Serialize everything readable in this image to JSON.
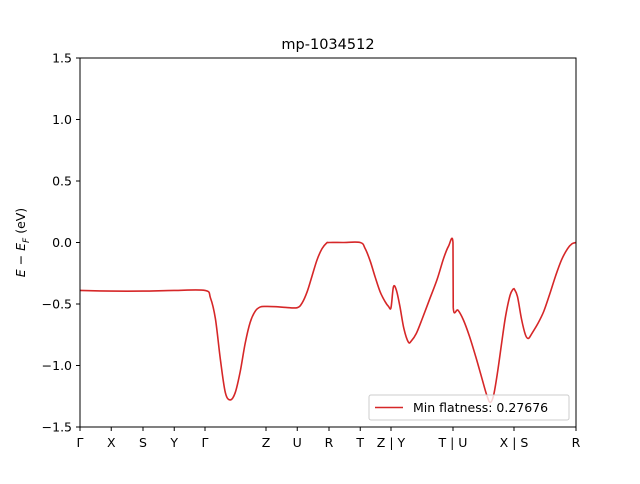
{
  "chart_data": {
    "type": "line",
    "title": "mp-1034512",
    "ylabel": "E − E_F (eV)",
    "ylim": [
      -1.5,
      1.5
    ],
    "yticks": [
      {
        "value": 1.5,
        "label": "1.5"
      },
      {
        "value": 1.0,
        "label": "1.0"
      },
      {
        "value": 0.5,
        "label": "0.5"
      },
      {
        "value": 0.0,
        "label": "0.0"
      },
      {
        "value": -0.5,
        "label": "−0.5"
      },
      {
        "value": -1.0,
        "label": "−1.0"
      },
      {
        "value": -1.5,
        "label": "−1.5"
      }
    ],
    "xlim": [
      0,
      100
    ],
    "xticks": [
      {
        "value": 0.0,
        "label": "Γ"
      },
      {
        "value": 6.3,
        "label": "X"
      },
      {
        "value": 12.7,
        "label": "S"
      },
      {
        "value": 19.0,
        "label": "Y"
      },
      {
        "value": 25.2,
        "label": "Γ"
      },
      {
        "value": 37.5,
        "label": "Z"
      },
      {
        "value": 43.8,
        "label": "U"
      },
      {
        "value": 50.2,
        "label": "R"
      },
      {
        "value": 56.5,
        "label": "T"
      },
      {
        "value": 62.7,
        "label": "Z | Y"
      },
      {
        "value": 75.2,
        "label": "T | U"
      },
      {
        "value": 87.5,
        "label": "X | S"
      },
      {
        "value": 100.0,
        "label": "R"
      }
    ],
    "grid": false,
    "legend": {
      "position": "lower right",
      "label": "Min flatness: 0.27676"
    },
    "series": [
      {
        "name": "Min flatness: 0.27676",
        "color": "#d62728",
        "points": [
          [
            0.0,
            -0.39
          ],
          [
            6.3,
            -0.395
          ],
          [
            12.7,
            -0.395
          ],
          [
            19.0,
            -0.39
          ],
          [
            25.2,
            -0.39
          ],
          [
            26.3,
            -0.45
          ],
          [
            27.3,
            -0.62
          ],
          [
            28.3,
            -0.95
          ],
          [
            29.3,
            -1.22
          ],
          [
            30.3,
            -1.28
          ],
          [
            31.3,
            -1.22
          ],
          [
            32.3,
            -1.05
          ],
          [
            33.3,
            -0.82
          ],
          [
            34.3,
            -0.65
          ],
          [
            35.3,
            -0.56
          ],
          [
            36.3,
            -0.525
          ],
          [
            37.5,
            -0.52
          ],
          [
            39.5,
            -0.522
          ],
          [
            41.5,
            -0.528
          ],
          [
            43.8,
            -0.53
          ],
          [
            44.8,
            -0.49
          ],
          [
            45.8,
            -0.4
          ],
          [
            46.8,
            -0.27
          ],
          [
            47.8,
            -0.14
          ],
          [
            48.8,
            -0.05
          ],
          [
            49.7,
            -0.005
          ],
          [
            50.2,
            0.0
          ],
          [
            53.0,
            0.0
          ],
          [
            56.5,
            0.0
          ],
          [
            57.5,
            -0.05
          ],
          [
            58.5,
            -0.15
          ],
          [
            59.5,
            -0.28
          ],
          [
            60.5,
            -0.4
          ],
          [
            61.5,
            -0.48
          ],
          [
            62.2,
            -0.52
          ],
          [
            62.7,
            -0.53
          ],
          [
            63.2,
            -0.36
          ],
          [
            63.8,
            -0.39
          ],
          [
            64.5,
            -0.52
          ],
          [
            65.3,
            -0.7
          ],
          [
            66.2,
            -0.81
          ],
          [
            66.8,
            -0.8
          ],
          [
            67.8,
            -0.74
          ],
          [
            69.0,
            -0.62
          ],
          [
            70.5,
            -0.46
          ],
          [
            72.0,
            -0.3
          ],
          [
            73.3,
            -0.13
          ],
          [
            74.3,
            -0.03
          ],
          [
            75.2,
            0.0
          ],
          [
            75.25,
            -0.53
          ],
          [
            76.2,
            -0.55
          ],
          [
            77.3,
            -0.63
          ],
          [
            78.5,
            -0.76
          ],
          [
            79.8,
            -0.93
          ],
          [
            81.0,
            -1.1
          ],
          [
            82.0,
            -1.24
          ],
          [
            82.7,
            -1.3
          ],
          [
            83.4,
            -1.24
          ],
          [
            84.2,
            -1.05
          ],
          [
            85.0,
            -0.82
          ],
          [
            85.8,
            -0.6
          ],
          [
            86.7,
            -0.43
          ],
          [
            87.3,
            -0.38
          ],
          [
            87.5,
            -0.375
          ],
          [
            88.2,
            -0.44
          ],
          [
            89.0,
            -0.62
          ],
          [
            89.8,
            -0.75
          ],
          [
            90.4,
            -0.78
          ],
          [
            91.1,
            -0.74
          ],
          [
            92.3,
            -0.66
          ],
          [
            93.5,
            -0.56
          ],
          [
            94.7,
            -0.42
          ],
          [
            95.9,
            -0.27
          ],
          [
            97.1,
            -0.14
          ],
          [
            98.3,
            -0.05
          ],
          [
            99.2,
            -0.01
          ],
          [
            100.0,
            0.0
          ]
        ]
      }
    ]
  }
}
